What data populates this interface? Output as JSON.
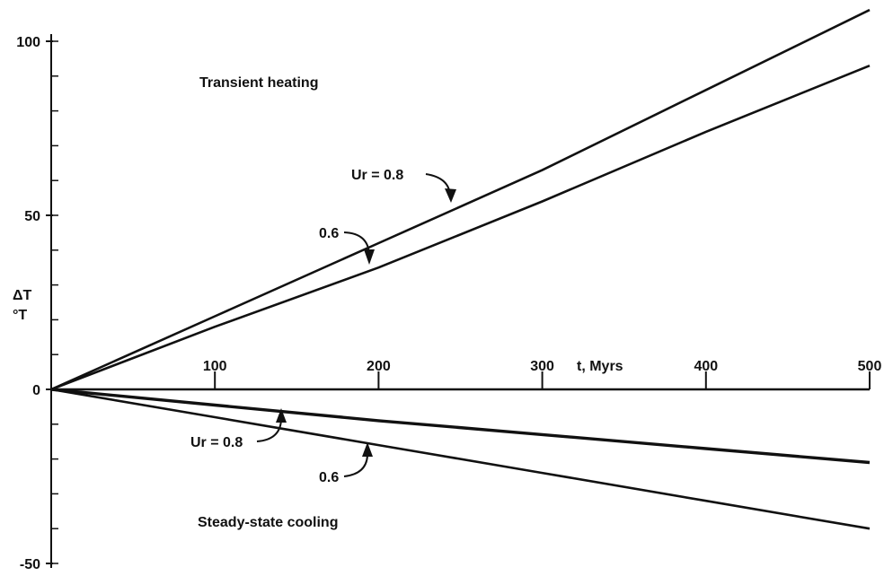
{
  "chart_data": {
    "type": "line",
    "xlabel": "t, Myrs",
    "ylabel_line1": "ΔT",
    "ylabel_line2": "°T",
    "xlim": [
      0,
      500
    ],
    "ylim": [
      -50,
      100
    ],
    "x_ticks": [
      100,
      200,
      300,
      400,
      500
    ],
    "y_ticks": [
      100,
      50,
      0,
      -50
    ],
    "y_minor_step": 10,
    "region_labels": {
      "heating": "Transient heating",
      "cooling": "Steady-state cooling"
    },
    "series": [
      {
        "group": "heating",
        "x": [
          0,
          100,
          200,
          300,
          400,
          500
        ],
        "y": [
          0,
          21,
          42,
          63,
          86,
          109
        ]
      },
      {
        "group": "heating",
        "x": [
          0,
          100,
          200,
          300,
          400,
          500
        ],
        "y": [
          0,
          18,
          35,
          54,
          74,
          93
        ]
      },
      {
        "group": "cooling",
        "x": [
          0,
          100,
          200,
          300,
          400,
          500
        ],
        "y": [
          0,
          -4.5,
          -9,
          -13,
          -17,
          -21
        ]
      },
      {
        "group": "cooling",
        "x": [
          0,
          100,
          200,
          300,
          400,
          500
        ],
        "y": [
          0,
          -8,
          -16,
          -24,
          -32,
          -40
        ]
      }
    ],
    "annotations": {
      "heat_08": "Ur = 0.8",
      "heat_06": "0.6",
      "cool_08": "Ur = 0.8",
      "cool_06": "0.6"
    }
  }
}
